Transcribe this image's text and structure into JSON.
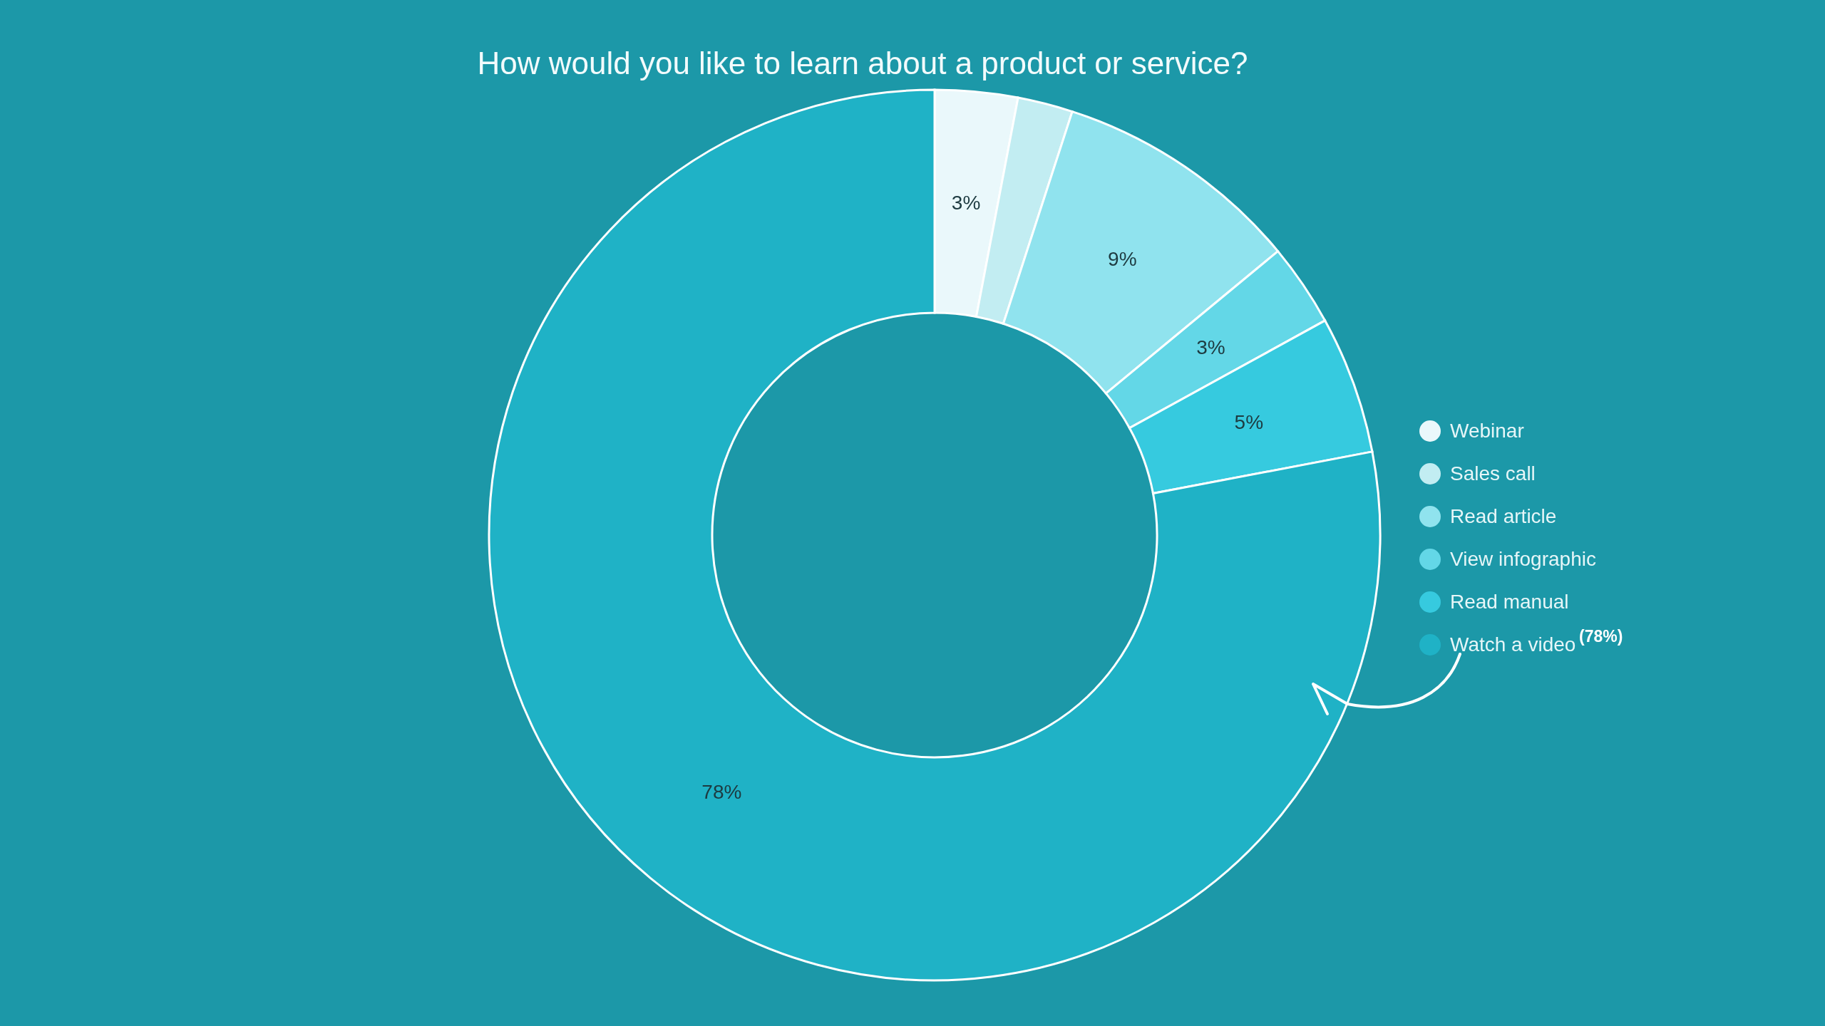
{
  "chart_data": {
    "type": "donut",
    "title": "How would you like to learn about a product or service?",
    "categories": [
      "Webinar",
      "Sales call",
      "Read article",
      "View infographic",
      "Read manual",
      "Watch a video"
    ],
    "values": [
      3,
      2,
      9,
      3,
      5,
      78
    ],
    "colors": [
      "#eaf8fb",
      "#c2edf2",
      "#90e3ee",
      "#63d7e7",
      "#36cadf",
      "#1fb2c6"
    ],
    "value_labels": [
      "3%",
      null,
      "9%",
      "3%",
      "5%",
      "78%"
    ],
    "legend": "right",
    "annotations": [
      "(78%)"
    ]
  }
}
